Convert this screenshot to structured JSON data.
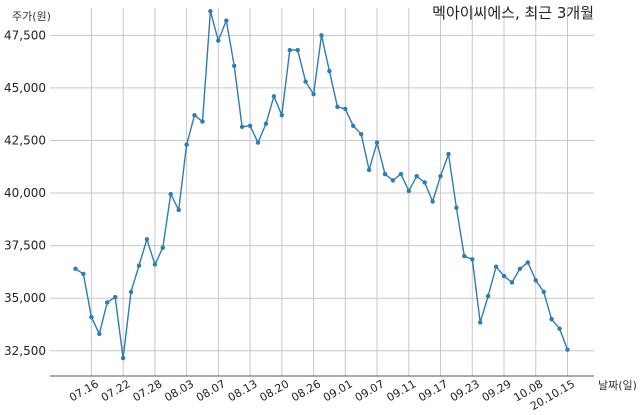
{
  "chart_data": {
    "type": "line",
    "title": "멕아이씨에스, 최근 3개월",
    "ylabel": "주가(원)",
    "xlabel": "날짜(일)",
    "ylim": [
      31300,
      48800
    ],
    "yticks": [
      32500,
      35000,
      37500,
      40000,
      42500,
      45000,
      47500
    ],
    "ytick_labels": [
      "32,500",
      "35,000",
      "37,500",
      "40,000",
      "42,500",
      "45,000",
      "47,500"
    ],
    "xtick_labels": [
      "07.16",
      "07.22",
      "07.28",
      "08.03",
      "08.07",
      "08.13",
      "08.20",
      "08.26",
      "09.01",
      "09.07",
      "09.11",
      "09.17",
      "09.23",
      "09.29",
      "10.08",
      "20.10.15"
    ],
    "xtick_index": [
      2,
      6,
      10,
      14,
      18,
      22,
      26,
      30,
      34,
      38,
      42,
      46,
      50,
      54,
      58,
      62
    ],
    "grid": true,
    "series": [
      {
        "color": "#2e7cb0",
        "values": [
          36400,
          36150,
          34100,
          33300,
          34800,
          35050,
          32150,
          35300,
          36550,
          37800,
          36600,
          37400,
          39950,
          39200,
          42300,
          43700,
          43400,
          48650,
          47250,
          48200,
          46050,
          43150,
          43200,
          42400,
          43300,
          44600,
          43700,
          46800,
          46800,
          45300,
          44700,
          47500,
          45800,
          44100,
          44000,
          43200,
          42800,
          41100,
          42400,
          40900,
          40600,
          40900,
          40100,
          40800,
          40500,
          39600,
          40800,
          41850,
          39300,
          37000,
          36850,
          33850,
          35100,
          36500,
          36050,
          35750,
          36400,
          36700,
          35850,
          35300,
          34000,
          33550,
          32550
        ]
      }
    ]
  }
}
